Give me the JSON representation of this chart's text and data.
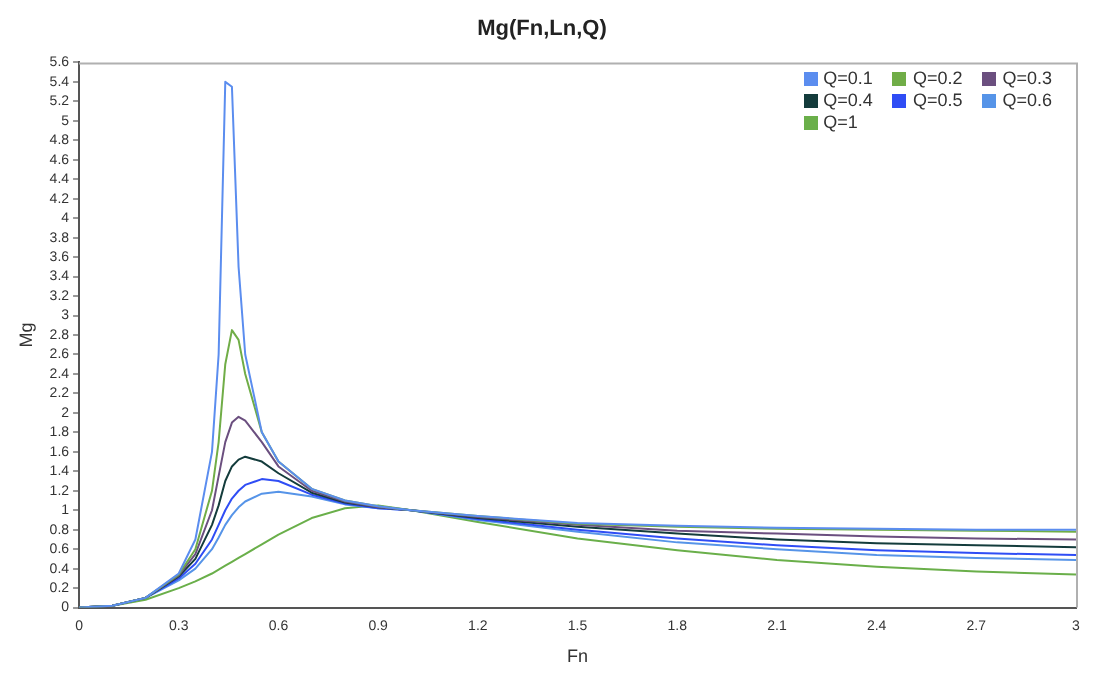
{
  "chart_data": {
    "type": "line",
    "title": "Mg(Fn,Ln,Q)",
    "xlabel": "Fn",
    "ylabel": "Mg",
    "x": [
      0,
      0.1,
      0.2,
      0.3,
      0.35,
      0.4,
      0.42,
      0.44,
      0.46,
      0.48,
      0.5,
      0.55,
      0.6,
      0.7,
      0.8,
      0.9,
      1,
      1.2,
      1.5,
      1.8,
      2.1,
      2.4,
      2.7,
      3
    ],
    "series": [
      {
        "name": "Q=0.1",
        "color": "#5b8def",
        "values": [
          0,
          0.02,
          0.1,
          0.35,
          0.7,
          1.6,
          2.6,
          5.4,
          5.35,
          3.5,
          2.6,
          1.8,
          1.5,
          1.22,
          1.1,
          1.04,
          1,
          0.94,
          0.87,
          0.84,
          0.82,
          0.81,
          0.8,
          0.8
        ]
      },
      {
        "name": "Q=0.2",
        "color": "#70ad47",
        "values": [
          0,
          0.02,
          0.1,
          0.34,
          0.6,
          1.2,
          1.7,
          2.5,
          2.85,
          2.75,
          2.4,
          1.8,
          1.5,
          1.22,
          1.1,
          1.04,
          1,
          0.94,
          0.86,
          0.83,
          0.81,
          0.8,
          0.79,
          0.78
        ]
      },
      {
        "name": "Q=0.3",
        "color": "#6b4f7f",
        "values": [
          0,
          0.02,
          0.1,
          0.33,
          0.55,
          1,
          1.35,
          1.7,
          1.9,
          1.96,
          1.92,
          1.7,
          1.45,
          1.2,
          1.09,
          1.03,
          1,
          0.93,
          0.85,
          0.79,
          0.76,
          0.73,
          0.71,
          0.7
        ]
      },
      {
        "name": "Q=0.4",
        "color": "#143c3c",
        "values": [
          0,
          0.02,
          0.1,
          0.32,
          0.5,
          0.85,
          1.05,
          1.3,
          1.45,
          1.52,
          1.55,
          1.5,
          1.38,
          1.18,
          1.08,
          1.03,
          1,
          0.92,
          0.83,
          0.76,
          0.7,
          0.66,
          0.64,
          0.62
        ]
      },
      {
        "name": "Q=0.5",
        "color": "#2f4df5",
        "values": [
          0,
          0.02,
          0.1,
          0.3,
          0.45,
          0.7,
          0.85,
          1,
          1.12,
          1.2,
          1.26,
          1.32,
          1.3,
          1.16,
          1.07,
          1.02,
          1,
          0.91,
          0.8,
          0.71,
          0.64,
          0.59,
          0.56,
          0.54
        ]
      },
      {
        "name": "Q=0.6",
        "color": "#5694e8",
        "values": [
          0,
          0.02,
          0.1,
          0.28,
          0.4,
          0.6,
          0.72,
          0.85,
          0.95,
          1.03,
          1.09,
          1.17,
          1.19,
          1.14,
          1.06,
          1.02,
          1,
          0.9,
          0.78,
          0.67,
          0.6,
          0.54,
          0.51,
          0.49
        ]
      },
      {
        "name": "Q=1",
        "color": "#6aaf4a",
        "values": [
          0,
          0.02,
          0.08,
          0.2,
          0.27,
          0.35,
          0.39,
          0.43,
          0.47,
          0.51,
          0.55,
          0.65,
          0.75,
          0.92,
          1.02,
          1.05,
          1,
          0.88,
          0.71,
          0.59,
          0.49,
          0.42,
          0.37,
          0.34
        ]
      }
    ],
    "xlim": [
      0,
      3
    ],
    "xticks": [
      0,
      0.3,
      0.6,
      0.9,
      1.2,
      1.5,
      1.8,
      2.1,
      2.4,
      2.7,
      3
    ],
    "ylim": [
      0,
      5.6
    ],
    "yticks": [
      0,
      0.2,
      0.4,
      0.6,
      0.8,
      1,
      1.2,
      1.4,
      1.6,
      1.8,
      2,
      2.2,
      2.4,
      2.6,
      2.8,
      3,
      3.2,
      3.4,
      3.6,
      3.8,
      4,
      4.2,
      4.4,
      4.6,
      4.8,
      5,
      5.2,
      5.4,
      5.6
    ],
    "grid": false,
    "legend": "top right",
    "marker": "none",
    "line_style": "solid"
  }
}
